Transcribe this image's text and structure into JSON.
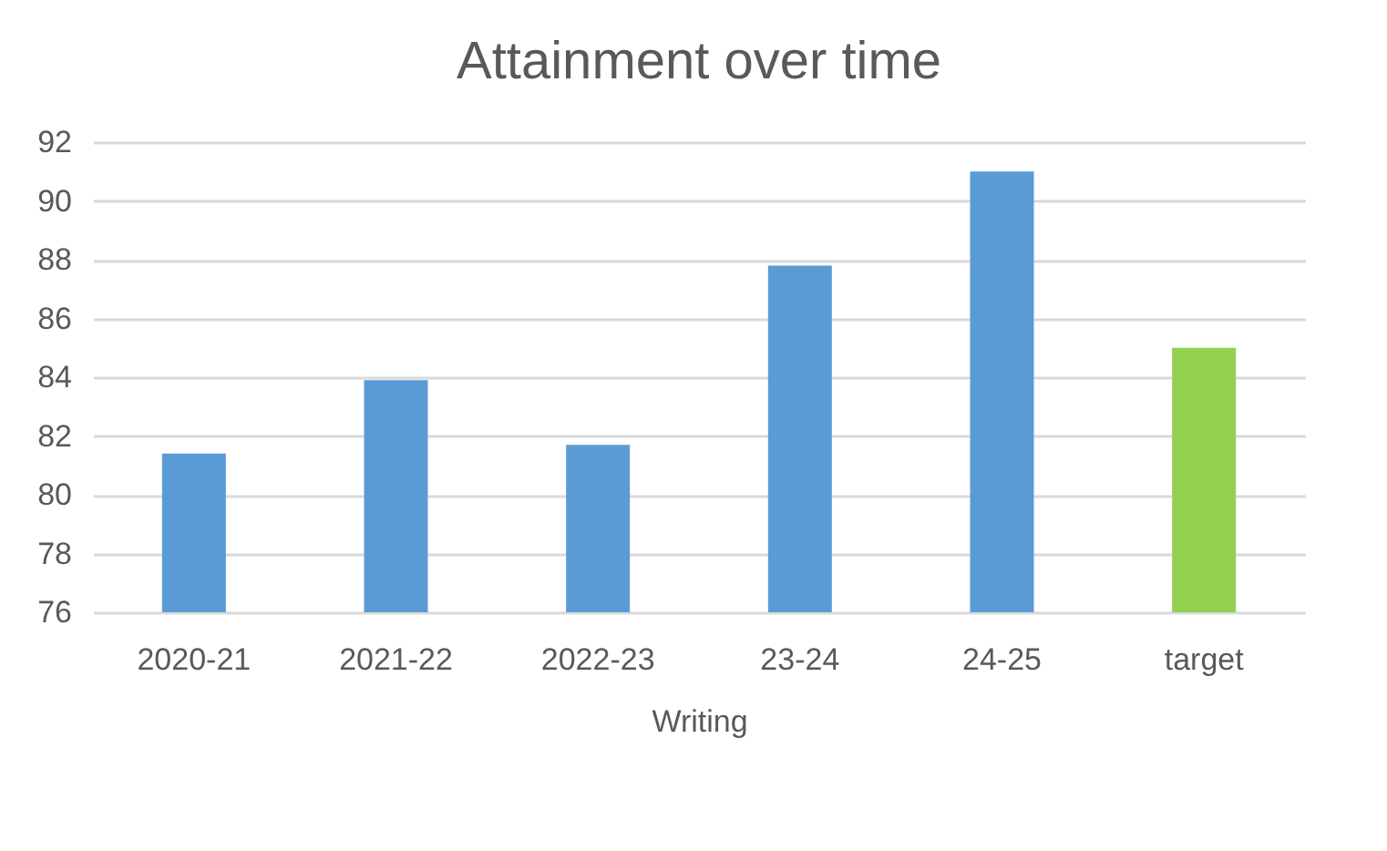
{
  "chart_data": {
    "type": "bar",
    "title": "Attainment over time",
    "xlabel": "Writing",
    "categories": [
      "2020-21",
      "2021-22",
      "2022-23",
      "23-24",
      "24-25",
      "target"
    ],
    "values": [
      81.4,
      83.9,
      81.7,
      87.8,
      91.0,
      85.0
    ],
    "colors": [
      "#5b9bd5",
      "#5b9bd5",
      "#5b9bd5",
      "#5b9bd5",
      "#5b9bd5",
      "#92d050"
    ],
    "ylim": [
      76,
      92
    ],
    "yticks": [
      76,
      78,
      80,
      82,
      84,
      86,
      88,
      90,
      92
    ],
    "grid": "y",
    "legend": false
  }
}
